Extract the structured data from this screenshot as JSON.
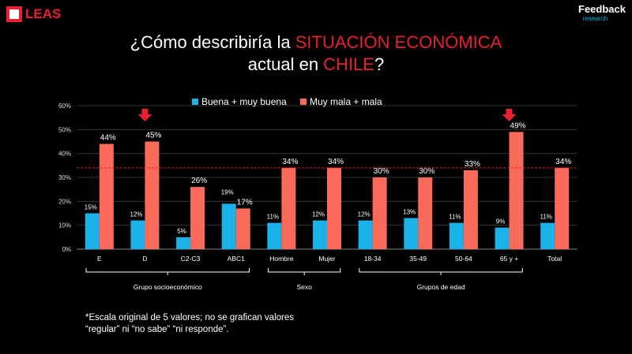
{
  "logos": {
    "left": "LEAS",
    "right_main": "Feedback",
    "right_sub": "research"
  },
  "title": {
    "line1_prefix": "¿Cómo describiría la ",
    "line1_highlight": "SITUACIÓN ECONÓMICA",
    "line2_prefix": "actual en ",
    "line2_highlight": "CHILE",
    "line2_suffix": "?"
  },
  "note": {
    "line1": "*Escala original de 5 valores; no se grafican valores",
    "line2": "“regular” ni “no sabe” “ni responde”."
  },
  "colors": {
    "blue": "#1ab2e8",
    "red": "#fa6a5a",
    "highlight": "#e8202f",
    "arrow": "#e8202f"
  },
  "chart_data": {
    "type": "bar",
    "categories": [
      "E",
      "D",
      "C2-C3",
      "ABC1",
      "Hombre",
      "Mujer",
      "18-34",
      "35-49",
      "50-64",
      "65 y +",
      "Total"
    ],
    "series": [
      {
        "name": "Buena + muy buena",
        "values": [
          15,
          12,
          5,
          19,
          11,
          12,
          12,
          13,
          11,
          9,
          11
        ]
      },
      {
        "name": "Muy mala + mala",
        "values": [
          44,
          45,
          26,
          17,
          34,
          34,
          30,
          30,
          33,
          49,
          34
        ]
      }
    ],
    "yticks": [
      "0%",
      "10%",
      "20%",
      "30%",
      "40%",
      "50%",
      "60%"
    ],
    "ylim": [
      0,
      60
    ],
    "reference_line": 34,
    "legend": "top",
    "arrows_over": [
      "D",
      "65 y +"
    ],
    "groups": [
      {
        "label": "Grupo socioeconómico",
        "from": 0,
        "to": 3
      },
      {
        "label": "Sexo",
        "from": 4,
        "to": 5
      },
      {
        "label": "Grupos de edad",
        "from": 6,
        "to": 9
      }
    ]
  }
}
